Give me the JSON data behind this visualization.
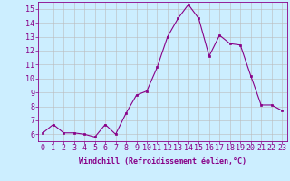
{
  "x": [
    0,
    1,
    2,
    3,
    4,
    5,
    6,
    7,
    8,
    9,
    10,
    11,
    12,
    13,
    14,
    15,
    16,
    17,
    18,
    19,
    20,
    21,
    22,
    23
  ],
  "y": [
    6.1,
    6.7,
    6.1,
    6.1,
    6.0,
    5.8,
    6.7,
    6.0,
    7.5,
    8.8,
    9.1,
    10.8,
    13.0,
    14.3,
    15.3,
    14.3,
    11.6,
    13.1,
    12.5,
    12.4,
    10.2,
    8.1,
    8.1,
    7.7
  ],
  "xlabel": "Windchill (Refroidissement éolien,°C)",
  "xlim": [
    -0.5,
    23.5
  ],
  "ylim": [
    5.5,
    15.5
  ],
  "yticks": [
    6,
    7,
    8,
    9,
    10,
    11,
    12,
    13,
    14,
    15
  ],
  "xticks": [
    0,
    1,
    2,
    3,
    4,
    5,
    6,
    7,
    8,
    9,
    10,
    11,
    12,
    13,
    14,
    15,
    16,
    17,
    18,
    19,
    20,
    21,
    22,
    23
  ],
  "line_color": "#880088",
  "marker_color": "#880088",
  "bg_color": "#cceeff",
  "grid_color": "#bbbbbb",
  "text_color": "#880088",
  "label_fontsize": 6.0,
  "tick_fontsize": 6.0
}
